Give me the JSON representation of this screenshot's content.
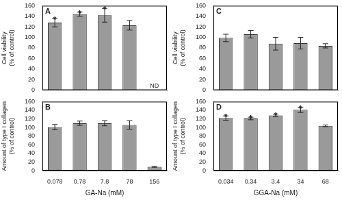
{
  "chart_data": [
    {
      "type": "bar",
      "title": "A",
      "ylabel": [
        "Cell viability",
        "(% of control)"
      ],
      "categories": [
        "0.078",
        "0.78",
        "7.8",
        "78",
        "156"
      ],
      "values": [
        128,
        144,
        142,
        123,
        null
      ],
      "errors": [
        8,
        4,
        13,
        9,
        null
      ],
      "annotations": [
        {
          "category": "0.078",
          "text": "*"
        },
        {
          "category": "0.78",
          "text": "*"
        },
        {
          "category": "7.8",
          "text": "*"
        },
        {
          "category": "156",
          "text": "ND"
        }
      ],
      "color": "#9a9a9a",
      "ylim": [
        0,
        160
      ],
      "yticks": [
        0,
        20,
        40,
        60,
        80,
        100,
        120,
        140,
        160
      ],
      "grid": false,
      "tick_labels": "y"
    },
    {
      "type": "bar",
      "title": "B",
      "ylabel": [
        "Amount of type I collagen",
        "(% of control)"
      ],
      "xlabel": "GA-Na (mM)",
      "categories": [
        "0.078",
        "0.78",
        "7.8",
        "78",
        "156"
      ],
      "values": [
        101,
        110,
        110,
        106,
        9
      ],
      "errors": [
        6,
        5,
        6,
        10,
        1
      ],
      "color": "#9a9a9a",
      "ylim": [
        0,
        160
      ],
      "yticks": [
        0,
        20,
        40,
        60,
        80,
        100,
        120,
        140,
        160
      ],
      "grid": false
    },
    {
      "type": "bar",
      "title": "C",
      "ylabel": [
        "Cell viability",
        "(% of control)"
      ],
      "categories": [
        "0.034",
        "0.34",
        "3.4",
        "34",
        "68"
      ],
      "values": [
        99,
        106,
        88,
        89,
        84
      ],
      "errors": [
        7,
        7,
        12,
        11,
        4
      ],
      "color": "#9a9a9a",
      "ylim": [
        0,
        160
      ],
      "yticks": [
        0,
        20,
        40,
        60,
        80,
        100,
        120,
        140,
        160
      ],
      "grid": false,
      "tick_labels": "y"
    },
    {
      "type": "bar",
      "title": "D",
      "ylabel": [
        "Amount of type I collagen",
        "(% of control)"
      ],
      "xlabel": "GGA-Na (mM)",
      "categories": [
        "0.034",
        "0.34",
        "3.4",
        "34",
        "68"
      ],
      "values": [
        122,
        121,
        128,
        141,
        104
      ],
      "errors": [
        5,
        3,
        3,
        6,
        2
      ],
      "annotations": [
        {
          "category": "0.034",
          "text": "*"
        },
        {
          "category": "0.34",
          "text": "*"
        },
        {
          "category": "3.4",
          "text": "*"
        },
        {
          "category": "34",
          "text": "*"
        }
      ],
      "color": "#9a9a9a",
      "ylim": [
        0,
        160
      ],
      "yticks": [
        0,
        20,
        40,
        60,
        80,
        100,
        120,
        140,
        160
      ],
      "grid": false
    }
  ]
}
